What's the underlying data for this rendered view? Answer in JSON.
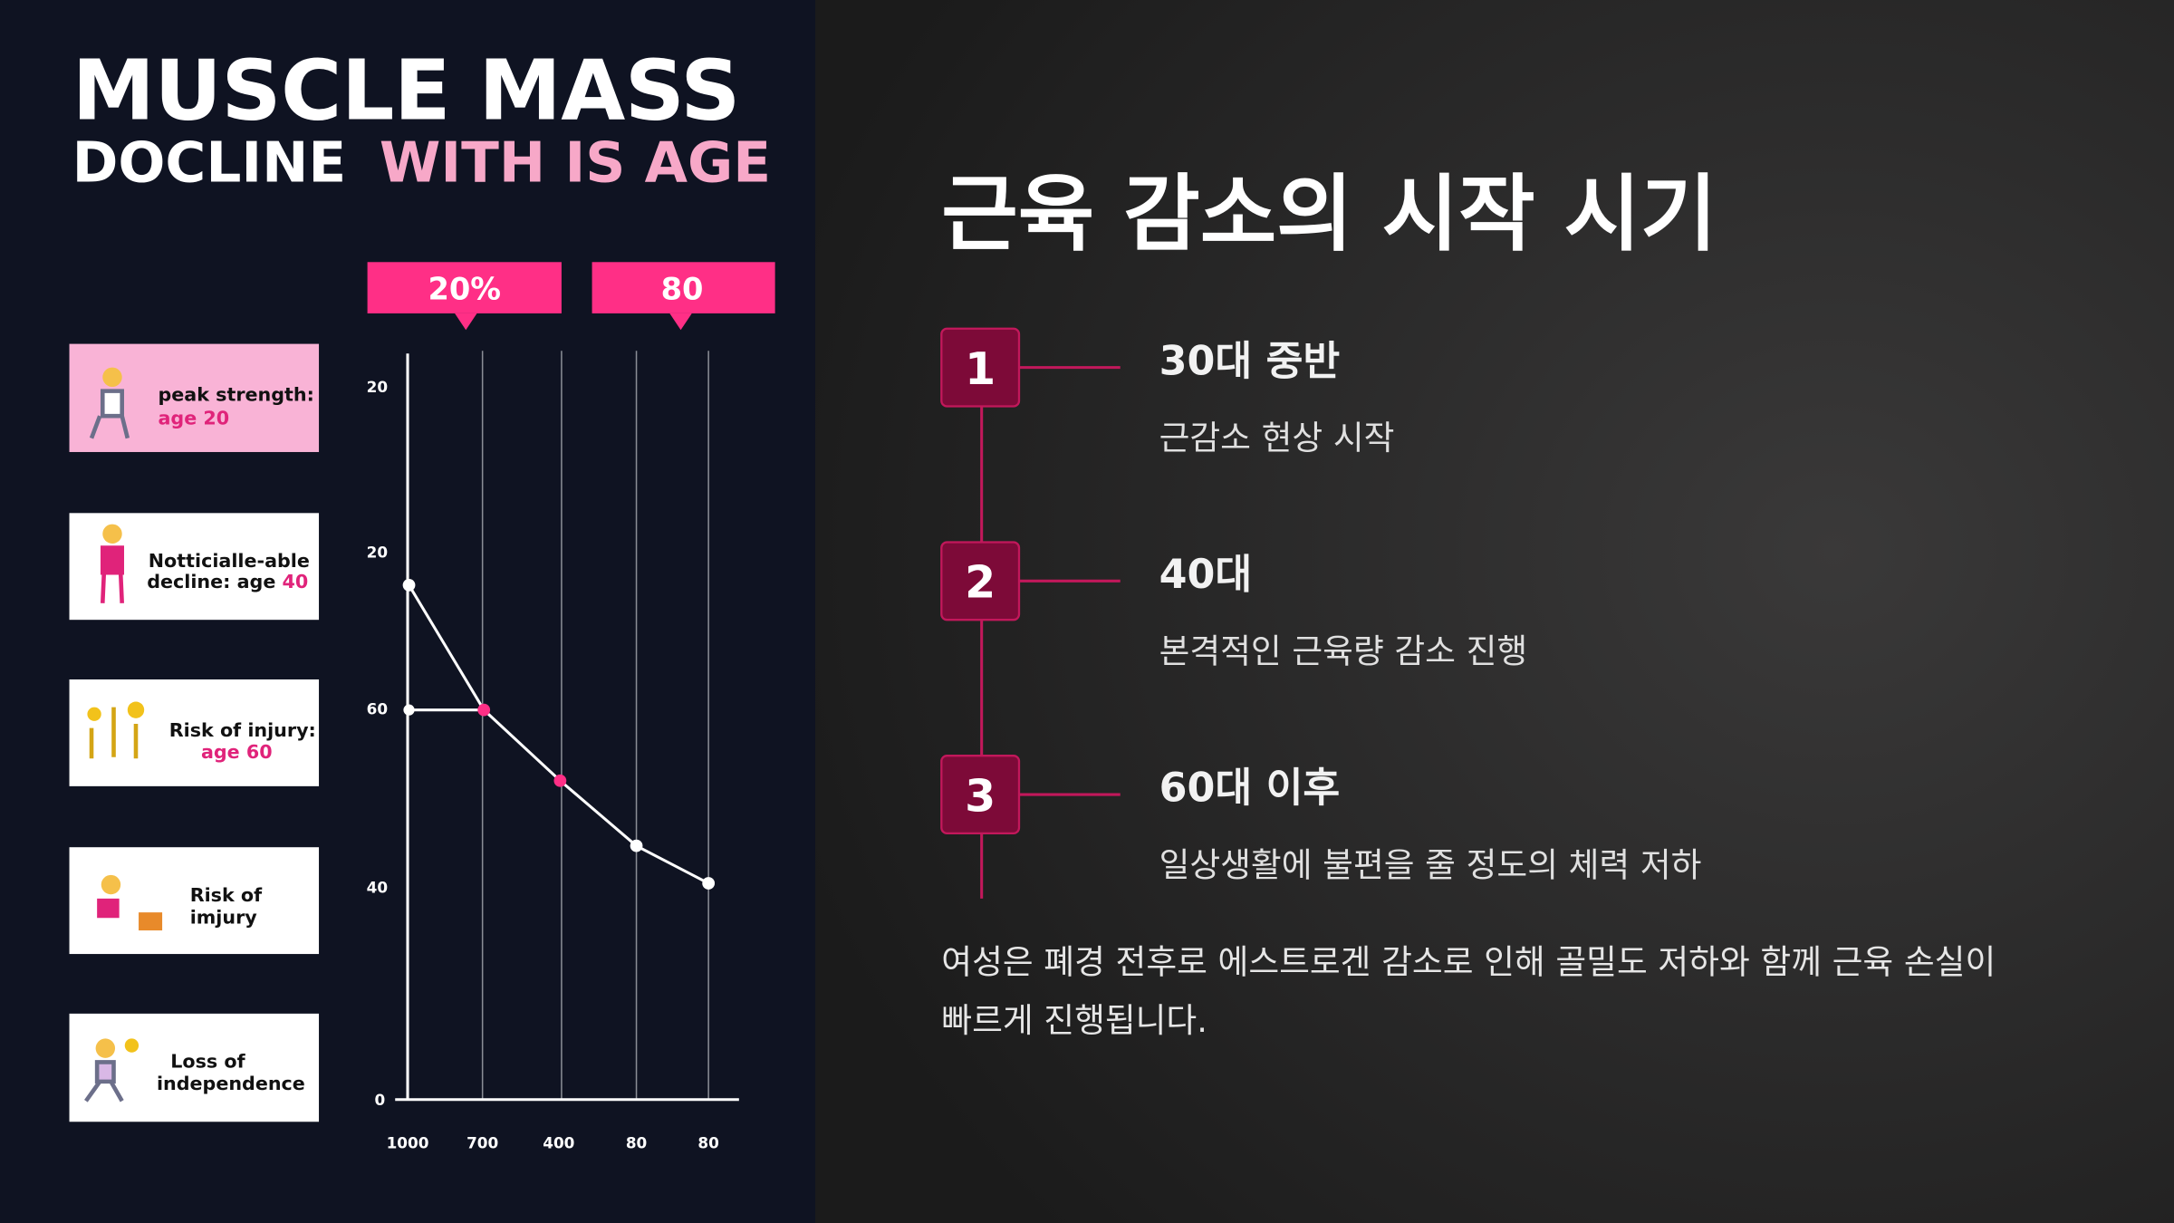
{
  "left": {
    "title_line1": "MUSCLE MASS",
    "title_line2_white": "DOCLINE",
    "title_line2_pink": "WITH IS AGE",
    "callouts": [
      "20%",
      "80"
    ],
    "cards": [
      {
        "lines": [
          "peak strength:"
        ],
        "highlight_line": "age 20"
      },
      {
        "lines": [
          "Notticialle-able",
          "decline: age"
        ],
        "highlight": "40"
      },
      {
        "lines": [
          "Risk of injury:"
        ],
        "highlight_line": "age 60"
      },
      {
        "lines": [
          "Risk of",
          "imjury"
        ]
      },
      {
        "lines": [
          "Loss of",
          "independence"
        ]
      }
    ],
    "chart": {
      "y_tick_labels": [
        "20",
        "20",
        "60",
        "40",
        "0"
      ],
      "x_tick_labels": [
        "1000",
        "700",
        "400",
        "80",
        "80"
      ]
    }
  },
  "right": {
    "title": "근육 감소의 시작 시기",
    "steps": [
      {
        "number": "1",
        "heading": "30대 중반",
        "description": "근감소 현상 시작"
      },
      {
        "number": "2",
        "heading": "40대",
        "description": "본격적인 근육량 감소 진행"
      },
      {
        "number": "3",
        "heading": "60대 이후",
        "description": "일상생활에 불편을 줄 정도의 체력 저하"
      }
    ],
    "note": [
      "여성은 폐경 전후로 에스트로겐 감소로 인해 골밀도 저하와 함께 근육 손실이",
      "빠르게 진행됩니다."
    ]
  }
}
